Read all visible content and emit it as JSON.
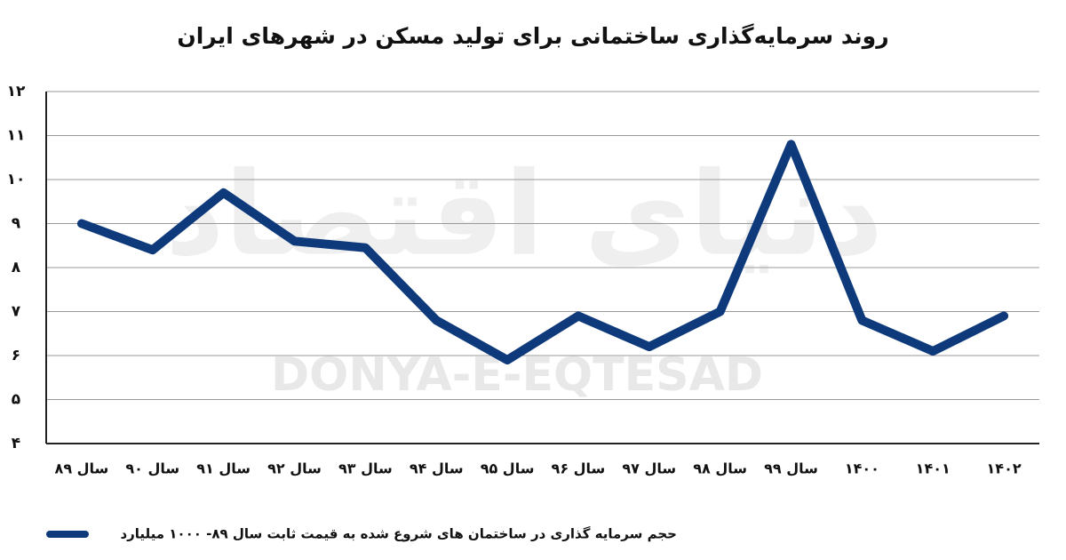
{
  "chart_data": {
    "type": "line",
    "title": "روند سرمایه‌گذاری ساختمانی برای تولید مسکن در شهرهای ایران",
    "watermark": [
      "دنیای اقتصاد",
      "DONYA-E-EQTESAD"
    ],
    "categories": [
      "سال ۸۹",
      "سال ۹۰",
      "سال ۹۱",
      "سال ۹۲",
      "سال ۹۳",
      "سال ۹۴",
      "سال ۹۵",
      "سال ۹۶",
      "سال ۹۷",
      "سال ۹۸",
      "سال ۹۹",
      "۱۴۰۰",
      "۱۴۰۱",
      "۱۴۰۲"
    ],
    "series": [
      {
        "name": "حجم سرمایه گذاری در ساختمان های شروع شده به قیمت ثابت سال ۸۹- ۱۰۰۰ میلیارد",
        "color": "#0e3a7c",
        "values": [
          9.0,
          8.4,
          9.7,
          8.6,
          8.45,
          6.8,
          5.9,
          6.9,
          6.2,
          7.0,
          10.8,
          6.8,
          6.1,
          6.9
        ]
      }
    ],
    "ylim": [
      4,
      12
    ],
    "yticks": [
      {
        "value": 4,
        "label": "۴"
      },
      {
        "value": 5,
        "label": "۵"
      },
      {
        "value": 6,
        "label": "۶"
      },
      {
        "value": 7,
        "label": "۷"
      },
      {
        "value": 8,
        "label": "۸"
      },
      {
        "value": 9,
        "label": "۹"
      },
      {
        "value": 10,
        "label": "۱۰"
      },
      {
        "value": 11,
        "label": "۱۱"
      },
      {
        "value": 12,
        "label": "۱۲"
      }
    ],
    "grid": true
  }
}
